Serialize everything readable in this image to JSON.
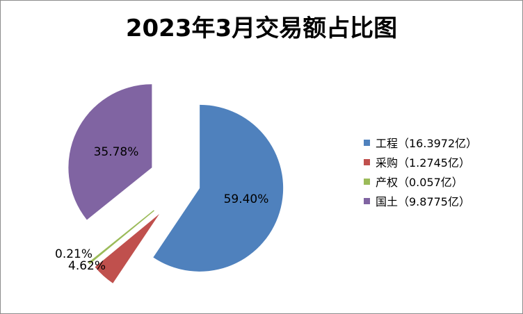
{
  "chart_data": {
    "type": "pie",
    "title": "2023年3月交易额占比图",
    "categories": [
      "工程",
      "采购",
      "产权",
      "国土"
    ],
    "values": [
      16.3972,
      1.2745,
      0.057,
      9.8775
    ],
    "percent_labels": [
      "59.40%",
      "4.62%",
      "0.21%",
      "35.78%"
    ],
    "legend_labels": [
      "工程（16.3972亿）",
      "采购（1.2745亿）",
      "产权（0.057亿）",
      "国土（9.8775亿）"
    ],
    "colors": [
      "#4f81bd",
      "#c0504d",
      "#9bbb59",
      "#8064a2"
    ],
    "legend_position": "right",
    "exploded": true
  }
}
